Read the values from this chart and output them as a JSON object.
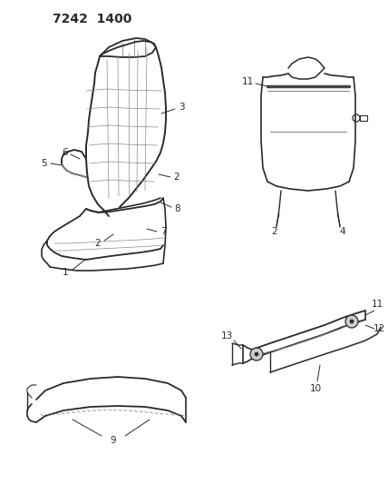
{
  "title": "7242  1400",
  "bg_color": "#ffffff",
  "fig_width": 4.28,
  "fig_height": 5.33,
  "dpi": 100,
  "line_color": "#2a2a2a",
  "gray": "#888888",
  "light_gray": "#bbbbbb"
}
